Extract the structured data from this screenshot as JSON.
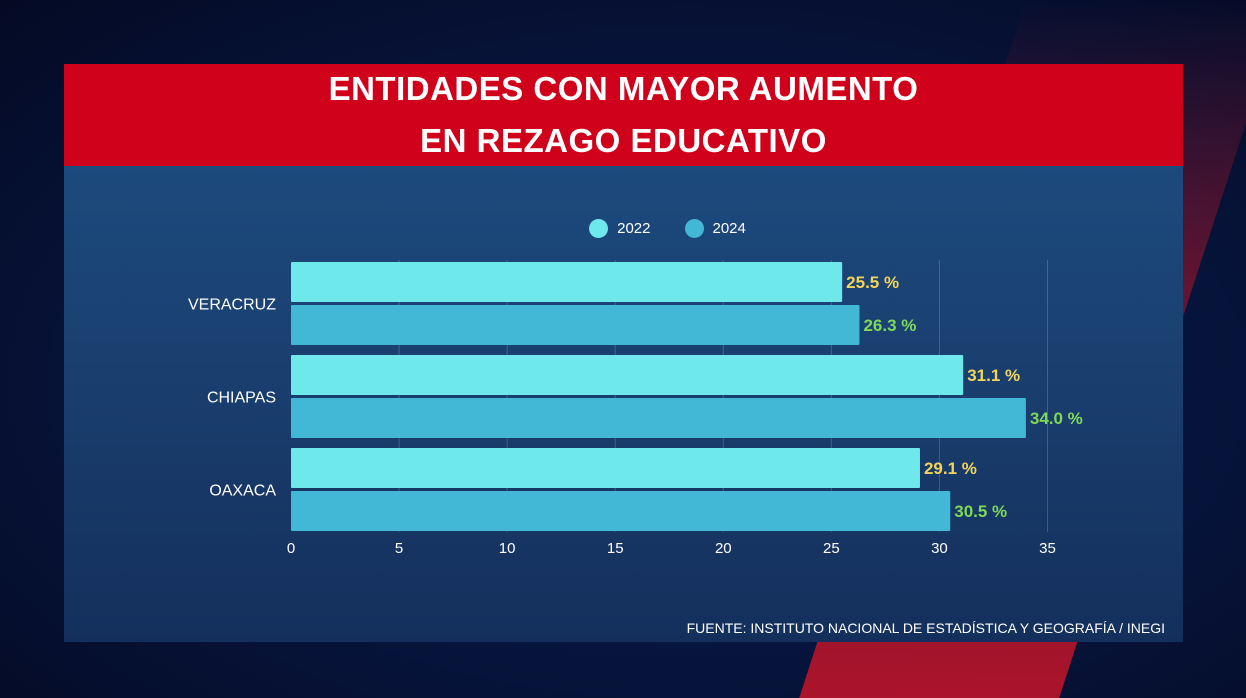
{
  "header": {
    "title_line1": "ENTIDADES CON MAYOR AUMENTO",
    "title_line2": "EN REZAGO EDUCATIVO"
  },
  "source": "FUENTE: INSTITUTO NACIONAL DE ESTADÍSTICA Y GEOGRAFÍA / INEGI",
  "colors": {
    "header_red": "#d0021b",
    "bar_2022": "#6ee8eb",
    "bar_2024": "#43b8d6",
    "label_2022": "#f2d45a",
    "label_2024": "#7ed95a"
  },
  "chart_data": {
    "type": "bar",
    "orientation": "horizontal",
    "title": "ENTIDADES CON MAYOR AUMENTO EN REZAGO EDUCATIVO",
    "categories": [
      "VERACRUZ",
      "CHIAPAS",
      "OAXACA"
    ],
    "series": [
      {
        "name": "2022",
        "values": [
          25.5,
          31.1,
          29.1
        ],
        "labels": [
          "25.5 %",
          "31.1 %",
          "29.1 %"
        ]
      },
      {
        "name": "2024",
        "values": [
          26.3,
          34.0,
          30.5
        ],
        "labels": [
          "26.3 %",
          "34.0 %",
          "30.5 %"
        ]
      }
    ],
    "xlim": [
      0,
      35
    ],
    "xticks": [
      "0",
      "5",
      "10",
      "15",
      "20",
      "25",
      "30",
      "35"
    ],
    "grid": true,
    "legend": "top-center"
  }
}
